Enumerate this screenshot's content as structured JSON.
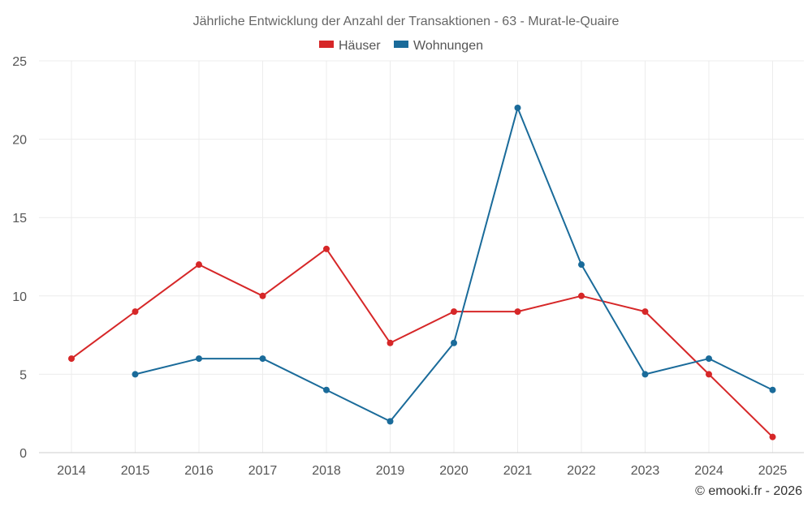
{
  "chart_data": {
    "type": "line",
    "title": "Jährliche Entwicklung der Anzahl der Transaktionen - 63 - Murat-le-Quaire",
    "categories": [
      "2014",
      "2015",
      "2016",
      "2017",
      "2018",
      "2019",
      "2020",
      "2021",
      "2022",
      "2023",
      "2024",
      "2025"
    ],
    "series": [
      {
        "name": "Häuser",
        "color": "#d62728",
        "values": [
          6,
          9,
          12,
          10,
          13,
          7,
          9,
          9,
          10,
          9,
          5,
          1
        ]
      },
      {
        "name": "Wohnungen",
        "color": "#1a6b9a",
        "values": [
          null,
          5,
          6,
          6,
          4,
          2,
          7,
          22,
          12,
          5,
          6,
          4
        ]
      }
    ],
    "xlabel": "",
    "ylabel": "",
    "ylim": [
      0,
      25
    ],
    "yticks": [
      0,
      5,
      10,
      15,
      20,
      25
    ],
    "grid": true,
    "legend_position": "top-center"
  },
  "credit": "© emooki.fr - 2026"
}
